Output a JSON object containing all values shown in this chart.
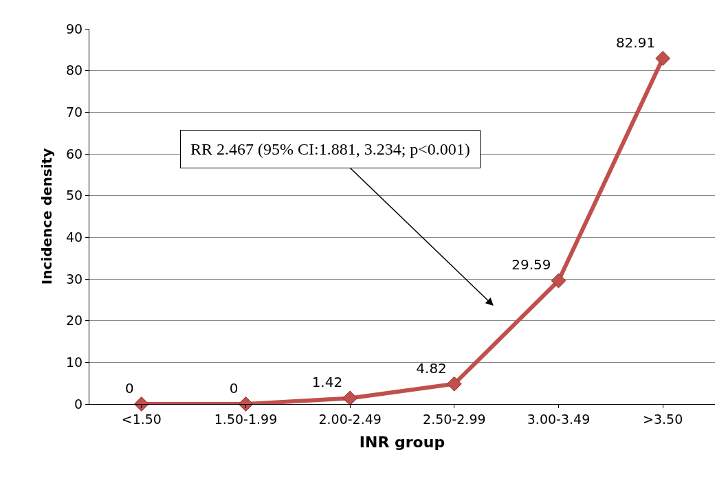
{
  "chart_data": {
    "type": "line",
    "xlabel": "INR group",
    "ylabel": "Incidence density",
    "categories": [
      "<1.50",
      "1.50-1.99",
      "2.00-2.49",
      "2.50-2.99",
      "3.00-3.49",
      ">3.50"
    ],
    "series": [
      {
        "color": "#c0504d",
        "values": [
          0,
          0,
          1.42,
          4.82,
          29.59,
          82.91
        ]
      }
    ],
    "ylim": [
      0,
      90
    ],
    "yticks": [
      0,
      10,
      20,
      30,
      40,
      50,
      60,
      70,
      80,
      90
    ],
    "grid": "y",
    "marker": "diamond",
    "line_style": "solid",
    "data_labels": true,
    "annotations": [
      "RR 2.467 (95% CI:1.881, 3.234; p<0.001)"
    ]
  }
}
